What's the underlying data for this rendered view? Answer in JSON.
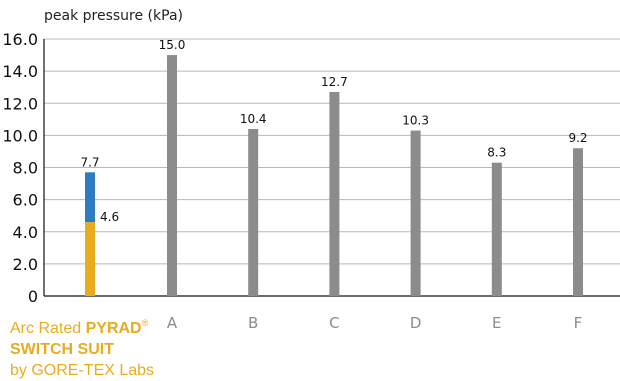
{
  "chart_data": {
    "type": "bar",
    "ylabel": "peak pressure (kPa)",
    "ylim": [
      0,
      16
    ],
    "yticks": [
      "16.0",
      "14.0",
      "12.0",
      "10.0",
      "8.0",
      "6.0",
      "4.0",
      "2.0",
      "0"
    ],
    "grid": true,
    "first_category": {
      "line1_prefix": "Arc Rated ",
      "line1_brand": "PYRAD",
      "line1_mark": "®",
      "line2": "SWITCH SUIT",
      "line3": "by GORE-TEX Labs",
      "segments": [
        {
          "value": 4.6,
          "label": "4.6",
          "color": "#e8ac1e"
        },
        {
          "value": 3.1,
          "color": "#2e7bbf"
        }
      ],
      "total_label": "7.7"
    },
    "categories": [
      "A",
      "B",
      "C",
      "D",
      "E",
      "F"
    ],
    "values": [
      15.0,
      10.4,
      12.7,
      10.3,
      8.3,
      9.2
    ],
    "value_labels": [
      "15.0",
      "10.4",
      "12.7",
      "10.3",
      "8.3",
      "9.2"
    ],
    "bar_color": "#8c8c8c",
    "category_label_color": "#8c8c8c"
  }
}
